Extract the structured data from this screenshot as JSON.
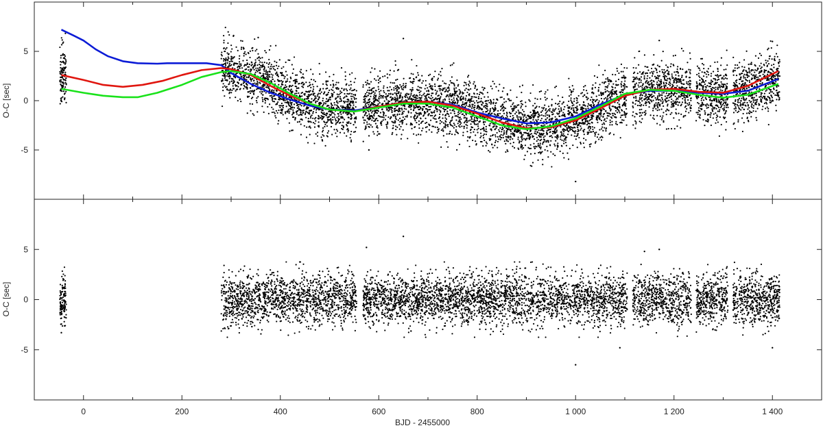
{
  "chart_data": {
    "type": "scatter",
    "xlabel": "BJD - 2455000",
    "xlim": [
      -100,
      1500
    ],
    "x_ticks": [
      0,
      200,
      400,
      600,
      800,
      1000,
      1200,
      1400
    ],
    "x_tick_labels": [
      "0",
      "200",
      "400",
      "600",
      "800",
      "1 000",
      "1 200",
      "1 400"
    ],
    "grid": false,
    "legend": "none",
    "colors": {
      "points": "#000000",
      "blue": "#0b1bd6",
      "red": "#e0160f",
      "green": "#19e21a"
    },
    "panels": [
      {
        "id": "top",
        "ylabel": "O-C [sec]",
        "ylim": [
          -10,
          10
        ],
        "y_ticks": [
          5,
          0,
          -5
        ],
        "y_tick_labels": [
          "5",
          "0",
          "-5"
        ],
        "series": [
          {
            "color": "#0b1bd6",
            "x": [
              -45,
              -20,
              0,
              25,
              50,
              80,
              110,
              150,
              170,
              200,
              250,
              280,
              300,
              340,
              380,
              420,
              460,
              500,
              550,
              600,
              650,
              700,
              750,
              800,
              850,
              900,
              950,
              1000,
              1050,
              1100,
              1150,
              1200,
              1250,
              1300,
              1350,
              1412
            ],
            "y": [
              7.2,
              6.6,
              6.1,
              5.2,
              4.5,
              4.0,
              3.8,
              3.75,
              3.8,
              3.8,
              3.8,
              3.6,
              2.8,
              1.7,
              0.8,
              0.1,
              -0.5,
              -0.9,
              -1.0,
              -0.6,
              -0.2,
              -0.1,
              -0.4,
              -1.2,
              -1.8,
              -2.3,
              -2.2,
              -1.6,
              -0.4,
              0.6,
              1.0,
              1.0,
              0.8,
              0.7,
              1.0,
              2.2
            ]
          },
          {
            "color": "#e0160f",
            "x": [
              -45,
              0,
              40,
              80,
              120,
              160,
              200,
              240,
              280,
              300,
              340,
              380,
              420,
              460,
              500,
              550,
              600,
              650,
              700,
              750,
              800,
              850,
              900,
              950,
              1000,
              1050,
              1100,
              1150,
              1200,
              1250,
              1300,
              1350,
              1412
            ],
            "y": [
              2.6,
              2.1,
              1.6,
              1.4,
              1.6,
              2.0,
              2.6,
              3.1,
              3.3,
              3.2,
              2.6,
              1.5,
              0.5,
              -0.3,
              -0.9,
              -1.1,
              -0.6,
              -0.2,
              -0.1,
              -0.5,
              -1.3,
              -2.2,
              -2.8,
              -2.7,
              -2.0,
              -0.8,
              0.5,
              1.1,
              1.2,
              0.9,
              0.8,
              1.5,
              3.0
            ]
          },
          {
            "color": "#19e21a",
            "x": [
              -45,
              0,
              40,
              80,
              110,
              150,
              200,
              240,
              280,
              300,
              340,
              380,
              420,
              460,
              500,
              550,
              600,
              650,
              700,
              750,
              800,
              850,
              900,
              950,
              1000,
              1050,
              1100,
              1150,
              1200,
              1250,
              1300,
              1350,
              1412
            ],
            "y": [
              1.2,
              0.8,
              0.5,
              0.35,
              0.35,
              0.8,
              1.6,
              2.4,
              2.9,
              3.0,
              2.7,
              1.8,
              0.7,
              -0.3,
              -0.9,
              -1.1,
              -0.7,
              -0.3,
              -0.3,
              -0.7,
              -1.6,
              -2.5,
              -2.9,
              -2.6,
              -1.8,
              -0.6,
              0.7,
              1.1,
              1.0,
              0.6,
              0.3,
              0.6,
              1.7
            ]
          }
        ],
        "trend": {
          "x": [
            -45,
            0,
            40,
            80,
            110,
            150,
            200,
            240,
            280,
            300,
            340,
            380,
            420,
            460,
            500,
            550,
            600,
            650,
            700,
            750,
            800,
            850,
            900,
            950,
            1000,
            1050,
            1100,
            1150,
            1200,
            1250,
            1300,
            1350,
            1412
          ],
          "y": [
            2.6,
            2.1,
            1.6,
            1.4,
            1.5,
            1.9,
            2.5,
            3.0,
            3.2,
            3.0,
            2.5,
            1.5,
            0.5,
            -0.3,
            -0.8,
            -1.0,
            -0.6,
            -0.2,
            -0.2,
            -0.5,
            -1.3,
            -2.1,
            -2.6,
            -2.5,
            -1.8,
            -0.7,
            0.5,
            1.0,
            1.0,
            0.8,
            0.7,
            1.1,
            2.3
          ]
        },
        "scatter_sigma": 1.45,
        "outliers": {
          "x": [
            1000,
            650,
            580,
            305,
            355,
            1170,
            1400
          ],
          "y": [
            -8.2,
            6.3,
            -5.0,
            6.6,
            6.4,
            6.1,
            6.0
          ]
        }
      },
      {
        "id": "bottom",
        "ylabel": "O-C [sec]",
        "ylim": [
          -10,
          10
        ],
        "y_ticks": [
          5,
          0,
          -5
        ],
        "y_tick_labels": [
          "5",
          "0",
          "-5"
        ],
        "scatter_sigma": 1.25,
        "outliers": {
          "x": [
            1000,
            650,
            575,
            1170,
            1140,
            1090,
            1400,
            -45
          ],
          "y": [
            -6.5,
            6.3,
            5.2,
            5.0,
            4.8,
            -4.8,
            -4.8,
            -3.3
          ]
        }
      }
    ],
    "observation_segments": [
      {
        "x_range": [
          -48,
          -35
        ],
        "count": 120
      },
      {
        "x_range": [
          280,
          555
        ],
        "count": 1500
      },
      {
        "x_range": [
          568,
          1105
        ],
        "count": 2900
      },
      {
        "x_range": [
          1115,
          1235
        ],
        "count": 650
      },
      {
        "x_range": [
          1245,
          1310
        ],
        "count": 380
      },
      {
        "x_range": [
          1320,
          1415
        ],
        "count": 560
      }
    ]
  }
}
